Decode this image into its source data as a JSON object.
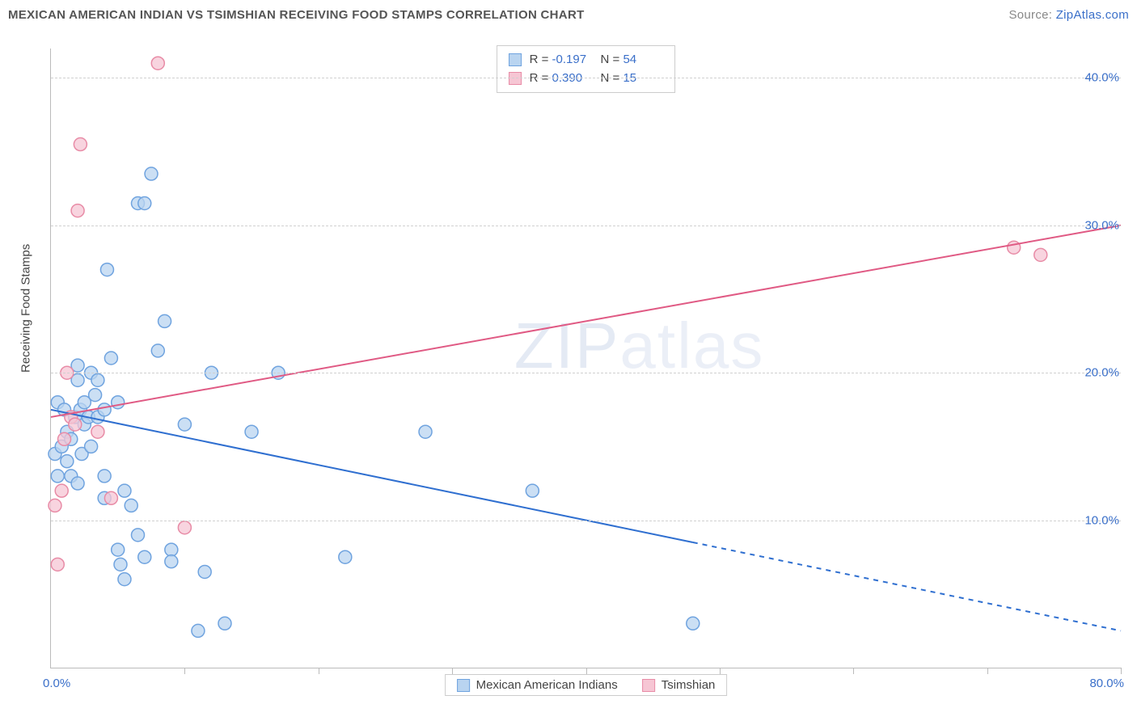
{
  "header": {
    "title": "MEXICAN AMERICAN INDIAN VS TSIMSHIAN RECEIVING FOOD STAMPS CORRELATION CHART",
    "source_prefix": "Source: ",
    "source_link": "ZipAtlas.com"
  },
  "chart": {
    "type": "scatter",
    "x_domain": [
      0,
      80
    ],
    "y_domain": [
      0,
      42
    ],
    "x_ticks_pct": [
      0,
      10,
      20,
      30,
      40,
      50,
      60,
      70,
      80
    ],
    "y_gridlines": [
      10,
      20,
      30,
      40
    ],
    "y_labels": [
      "10.0%",
      "20.0%",
      "30.0%",
      "40.0%"
    ],
    "x_label_min": "0.0%",
    "x_label_max": "80.0%",
    "y_axis_title": "Receiving Food Stamps",
    "watermark_bold": "ZIP",
    "watermark_thin": "atlas",
    "marker_radius": 8,
    "marker_stroke_width": 1.5,
    "line_width": 2,
    "background_color": "#ffffff",
    "grid_color": "#d0d0d0",
    "axis_color": "#bbbbbb",
    "label_color_blue": "#3a6fc9",
    "series": [
      {
        "id": "mex",
        "name": "Mexican American Indians",
        "fill": "#b9d4f0",
        "stroke": "#6fa3df",
        "line_color": "#2f6fd0",
        "r_label": "R =",
        "r_value": "-0.197",
        "n_label": "N =",
        "n_value": "54",
        "trend": {
          "x1": 0,
          "y1": 17.5,
          "x2_solid": 48,
          "y2_solid": 8.5,
          "x2": 80,
          "y2": 2.5,
          "dash_after_solid": true
        },
        "points": [
          [
            0.3,
            14.5
          ],
          [
            0.5,
            13.0
          ],
          [
            0.5,
            18.0
          ],
          [
            0.8,
            15.0
          ],
          [
            1.0,
            17.5
          ],
          [
            1.2,
            14.0
          ],
          [
            1.2,
            16.0
          ],
          [
            1.5,
            13.0
          ],
          [
            1.5,
            15.5
          ],
          [
            1.8,
            17.0
          ],
          [
            2.0,
            12.5
          ],
          [
            2.0,
            19.5
          ],
          [
            2.0,
            20.5
          ],
          [
            2.2,
            17.5
          ],
          [
            2.3,
            14.5
          ],
          [
            2.5,
            16.5
          ],
          [
            2.5,
            18.0
          ],
          [
            2.8,
            17.0
          ],
          [
            3.0,
            15.0
          ],
          [
            3.0,
            20.0
          ],
          [
            3.3,
            18.5
          ],
          [
            3.5,
            17.0
          ],
          [
            3.5,
            19.5
          ],
          [
            4.0,
            11.5
          ],
          [
            4.0,
            13.0
          ],
          [
            4.0,
            17.5
          ],
          [
            4.2,
            27.0
          ],
          [
            4.5,
            21.0
          ],
          [
            5.0,
            18.0
          ],
          [
            5.0,
            8.0
          ],
          [
            5.2,
            7.0
          ],
          [
            5.5,
            6.0
          ],
          [
            5.5,
            12.0
          ],
          [
            6.0,
            11.0
          ],
          [
            6.5,
            9.0
          ],
          [
            6.5,
            31.5
          ],
          [
            7.0,
            31.5
          ],
          [
            7.0,
            7.5
          ],
          [
            7.5,
            33.5
          ],
          [
            8.0,
            21.5
          ],
          [
            8.5,
            23.5
          ],
          [
            9.0,
            8.0
          ],
          [
            9.0,
            7.2
          ],
          [
            10.0,
            16.5
          ],
          [
            11.0,
            2.5
          ],
          [
            11.5,
            6.5
          ],
          [
            12.0,
            20.0
          ],
          [
            13.0,
            3.0
          ],
          [
            15.0,
            16.0
          ],
          [
            17.0,
            20.0
          ],
          [
            28.0,
            16.0
          ],
          [
            36.0,
            12.0
          ],
          [
            48.0,
            3.0
          ],
          [
            22.0,
            7.5
          ]
        ]
      },
      {
        "id": "tsi",
        "name": "Tsimshian",
        "fill": "#f6c6d4",
        "stroke": "#e88ba6",
        "line_color": "#e05a84",
        "r_label": "R =",
        "r_value": "0.390",
        "n_label": "N =",
        "n_value": "15",
        "trend": {
          "x1": 0,
          "y1": 17.0,
          "x2_solid": 80,
          "y2_solid": 30.0,
          "x2": 80,
          "y2": 30.0,
          "dash_after_solid": false
        },
        "points": [
          [
            0.3,
            11.0
          ],
          [
            0.5,
            7.0
          ],
          [
            0.8,
            12.0
          ],
          [
            1.0,
            15.5
          ],
          [
            1.2,
            20.0
          ],
          [
            1.5,
            17.0
          ],
          [
            1.8,
            16.5
          ],
          [
            2.0,
            31.0
          ],
          [
            2.2,
            35.5
          ],
          [
            3.5,
            16.0
          ],
          [
            4.5,
            11.5
          ],
          [
            8.0,
            41.0
          ],
          [
            10.0,
            9.5
          ],
          [
            72.0,
            28.5
          ],
          [
            74.0,
            28.0
          ]
        ]
      }
    ],
    "title_fontsize": 15,
    "label_fontsize": 15
  }
}
